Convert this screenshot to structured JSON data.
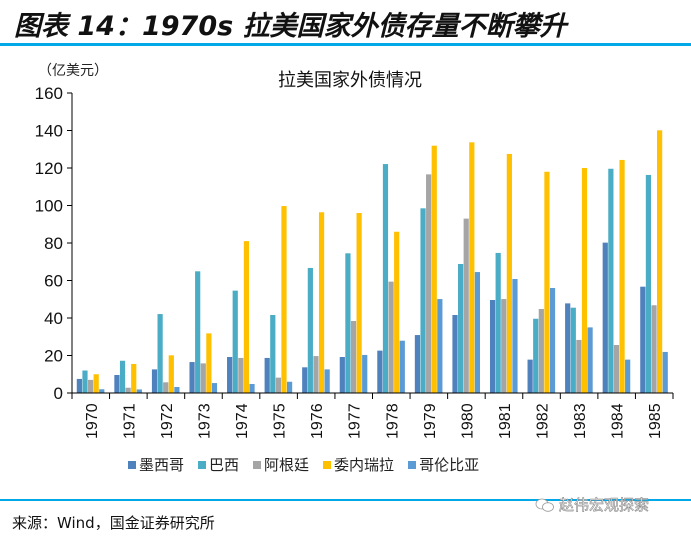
{
  "figure_title": "图表 14：1970s 拉美国家外债存量不断攀升",
  "source": "来源：Wind，国金证券研究所",
  "watermark": "赵伟宏观探索",
  "chart_data": {
    "type": "bar",
    "title": "拉美国家外债情况",
    "ylabel": "（亿美元）",
    "xlabel": "",
    "ylim": [
      0,
      160
    ],
    "yticks": [
      0,
      20,
      40,
      60,
      80,
      100,
      120,
      140,
      160
    ],
    "grid": false,
    "legend_position": "bottom",
    "categories": [
      "1970",
      "1971",
      "1972",
      "1973",
      "1974",
      "1975",
      "1976",
      "1977",
      "1978",
      "1979",
      "1980",
      "1981",
      "1982",
      "1983",
      "1984",
      "1985"
    ],
    "series": [
      {
        "name": "墨西哥",
        "color": "#4f81bd",
        "values": [
          7.5,
          9.6,
          12.6,
          16.5,
          19.2,
          18.7,
          13.7,
          19.2,
          22.6,
          30.9,
          41.6,
          49.6,
          17.8,
          47.8,
          80.2,
          56.7
        ]
      },
      {
        "name": "巴西",
        "color": "#4bacc6",
        "values": [
          12,
          17.2,
          42.1,
          64.9,
          54.6,
          41.6,
          66.7,
          74.5,
          122.1,
          98.5,
          68.8,
          74.7,
          39.6,
          45.5,
          119.6,
          116.3
        ]
      },
      {
        "name": "阿根廷",
        "color": "#a5a5a5",
        "values": [
          7,
          2.8,
          5.7,
          15.8,
          18.7,
          8.2,
          19.7,
          38.4,
          59.4,
          116.6,
          93,
          50.1,
          44.8,
          28.3,
          25.6,
          46.8
        ]
      },
      {
        "name": "委内瑞拉",
        "color": "#ffc000",
        "values": [
          10,
          15.5,
          20.1,
          31.8,
          81,
          99.7,
          96.4,
          96,
          86,
          131.9,
          133.7,
          127.5,
          118,
          120,
          124.3,
          140.1
        ]
      },
      {
        "name": "哥伦比亚",
        "color": "#5b9bd5",
        "values": [
          2,
          1.9,
          3.2,
          5.3,
          4.8,
          6,
          12.6,
          20.3,
          27.9,
          50.1,
          64.5,
          60.8,
          56,
          35,
          17.8,
          21.9
        ]
      }
    ]
  }
}
